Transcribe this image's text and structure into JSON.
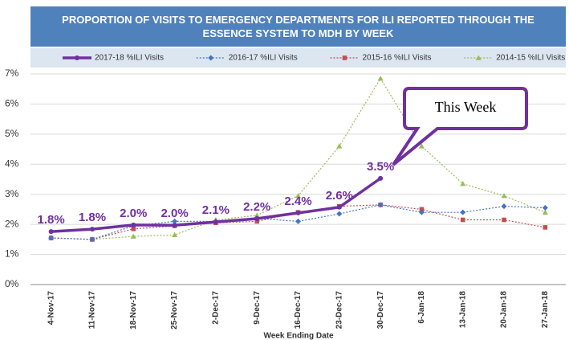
{
  "chart_data": {
    "type": "line",
    "title": "PROPORTION OF VISITS TO EMERGENCY DEPARTMENTS FOR ILI REPORTED THROUGH THE ESSENCE SYSTEM TO MDH BY WEEK",
    "x_label": "Week Ending Date",
    "annotation": "This Week",
    "categories": [
      "4-Nov-17",
      "11-Nov-17",
      "18-Nov-17",
      "25-Nov-17",
      "2-Dec-17",
      "9-Dec-17",
      "16-Dec-17",
      "23-Dec-17",
      "30-Dec-17",
      "6-Jan-18",
      "13-Jan-18",
      "20-Jan-18",
      "27-Jan-18"
    ],
    "series": [
      {
        "name": "2017-18 %ILI Visits",
        "color": "#7030a0",
        "marker": "circle",
        "line_style": "solid",
        "values": [
          1.76,
          1.84,
          1.98,
          1.97,
          2.08,
          2.19,
          2.38,
          2.57,
          3.53,
          null,
          null,
          null,
          null
        ],
        "value_labels": [
          "1.8%",
          "1.8%",
          "2.0%",
          "2.0%",
          "2.1%",
          "2.2%",
          "2.4%",
          "2.6%",
          "3.5%",
          null,
          null,
          null,
          null
        ]
      },
      {
        "name": "2016-17 %ILI Visits",
        "color": "#4472c4",
        "marker": "diamond",
        "line_style": "dotted",
        "values": [
          1.55,
          1.5,
          1.95,
          2.1,
          2.1,
          2.2,
          2.1,
          2.35,
          2.65,
          2.4,
          2.4,
          2.6,
          2.55
        ]
      },
      {
        "name": "2015-16 %ILI Visits",
        "color": "#c0504d",
        "marker": "square",
        "line_style": "dotted",
        "values": [
          1.55,
          1.5,
          1.85,
          1.95,
          2.05,
          2.1,
          2.4,
          2.6,
          2.65,
          2.5,
          2.15,
          2.15,
          1.9
        ]
      },
      {
        "name": "2014-15 %ILI Visits",
        "color": "#9bbb59",
        "marker": "triangle",
        "line_style": "dotted",
        "values": [
          1.55,
          1.5,
          1.6,
          1.65,
          2.15,
          2.3,
          2.95,
          4.6,
          6.85,
          4.6,
          3.35,
          2.95,
          2.4
        ]
      }
    ],
    "ylim": [
      0,
      7
    ],
    "yticks": [
      {
        "value": 0,
        "label": "0%"
      },
      {
        "value": 1,
        "label": "1%"
      },
      {
        "value": 2,
        "label": "2%"
      },
      {
        "value": 3,
        "label": "3%"
      },
      {
        "value": 4,
        "label": "4%"
      },
      {
        "value": 5,
        "label": "5%"
      },
      {
        "value": 6,
        "label": "6%"
      },
      {
        "value": 7,
        "label": "7%"
      }
    ],
    "grid": true
  }
}
